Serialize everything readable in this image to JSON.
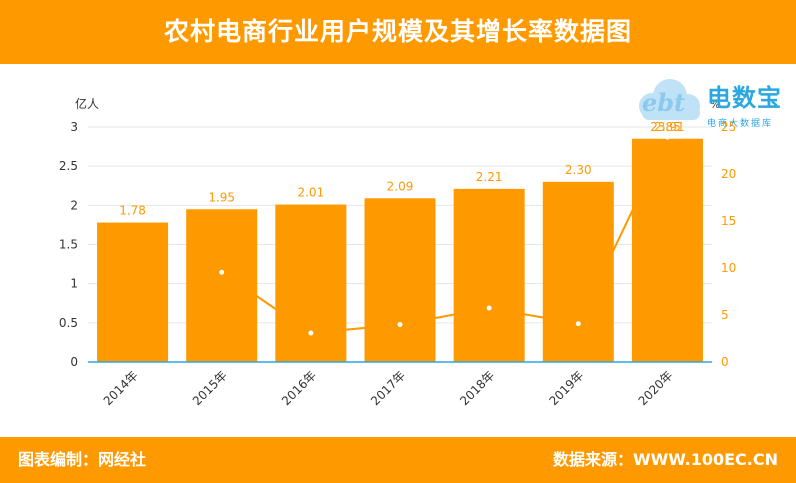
{
  "header": {
    "title": "农村电商行业用户规模及其增长率数据图"
  },
  "footer": {
    "left": "图表编制：网经社",
    "right": "数据来源：WWW.100EC.CN"
  },
  "logo": {
    "text": "电数宝",
    "subtitle": "电商大数据库",
    "brand_mark": "ebt"
  },
  "colors": {
    "header_bg": "#ff9900",
    "bar": "#ff9900",
    "line": "#ff9900",
    "axis_text": "#333333"
  },
  "chart_data": {
    "type": "bar",
    "categories": [
      "2014年",
      "2015年",
      "2016年",
      "2017年",
      "2018年",
      "2019年",
      "2020年"
    ],
    "series": [
      {
        "type": "bar",
        "axis": "left",
        "values": [
          1.78,
          1.95,
          2.01,
          2.09,
          2.21,
          2.3,
          2.85
        ],
        "labels": [
          "1.78",
          "1.95",
          "2.01",
          "2.09",
          "2.21",
          "2.30",
          "2.85"
        ]
      },
      {
        "type": "line",
        "axis": "right",
        "values": [
          null,
          9.55,
          3.08,
          3.98,
          5.74,
          4.07,
          23.91
        ],
        "labels": [
          "",
          "",
          "",
          "",
          "",
          "",
          "23.91"
        ]
      }
    ],
    "y_left": {
      "label": "亿人",
      "min": 0,
      "max": 3,
      "ticks": [
        "0",
        "0.5",
        "1",
        "1.5",
        "2",
        "2.5",
        "3"
      ]
    },
    "y_right": {
      "label": "%",
      "min": 0,
      "max": 25,
      "ticks": [
        "0",
        "5",
        "10",
        "15",
        "20",
        "25"
      ]
    },
    "grid": true
  }
}
